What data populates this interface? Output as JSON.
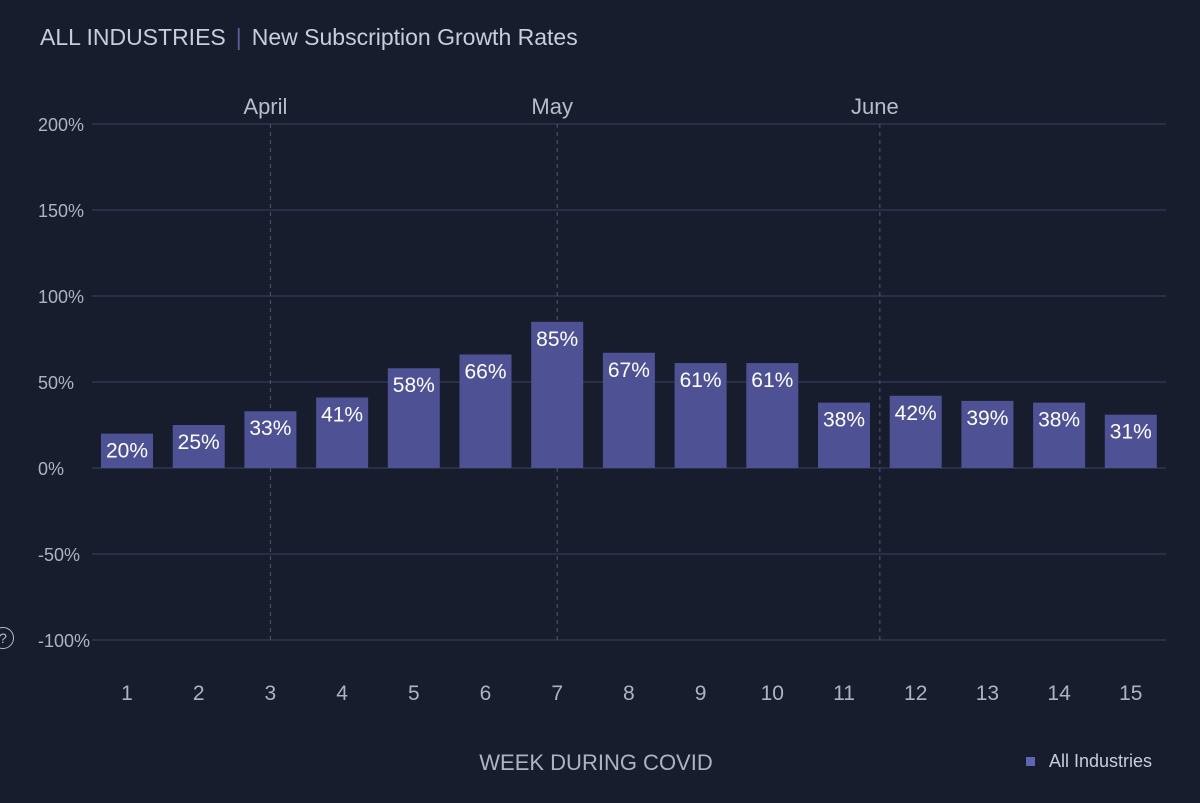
{
  "header": {
    "segment": "ALL INDUSTRIES",
    "separator": "|",
    "title": "New Subscription Growth Rates"
  },
  "help_icon": "?",
  "colors": {
    "background": "#181d2e",
    "bar": "#4e5294",
    "grid": "#3c4060",
    "text": "#c9ccda",
    "legend_swatch": "#5f65b6"
  },
  "chart_data": {
    "type": "bar",
    "title": "New Subscription Growth Rates",
    "xlabel": "WEEK DURING COVID",
    "ylabel": "",
    "categories": [
      "1",
      "2",
      "3",
      "4",
      "5",
      "6",
      "7",
      "8",
      "9",
      "10",
      "11",
      "12",
      "13",
      "14",
      "15"
    ],
    "series": [
      {
        "name": "All Industries",
        "values": [
          20,
          25,
          33,
          41,
          58,
          66,
          85,
          67,
          61,
          61,
          38,
          42,
          39,
          38,
          31
        ]
      }
    ],
    "data_labels": [
      "20%",
      "25%",
      "33%",
      "41%",
      "58%",
      "66%",
      "85%",
      "67%",
      "61%",
      "61%",
      "38%",
      "42%",
      "39%",
      "38%",
      "31%"
    ],
    "ylim": [
      -100,
      200
    ],
    "yticks": [
      200,
      150,
      100,
      50,
      0,
      -50,
      -100
    ],
    "ytick_labels": [
      "200%",
      "150%",
      "100%",
      "50%",
      "0%",
      "-50%",
      "-100%"
    ],
    "month_markers": [
      {
        "label": "April",
        "x": 3
      },
      {
        "label": "May",
        "x": 7
      },
      {
        "label": "June",
        "x": 11.5
      }
    ],
    "legend": {
      "label": "All Industries",
      "position": "bottom-right"
    },
    "grid": true
  }
}
